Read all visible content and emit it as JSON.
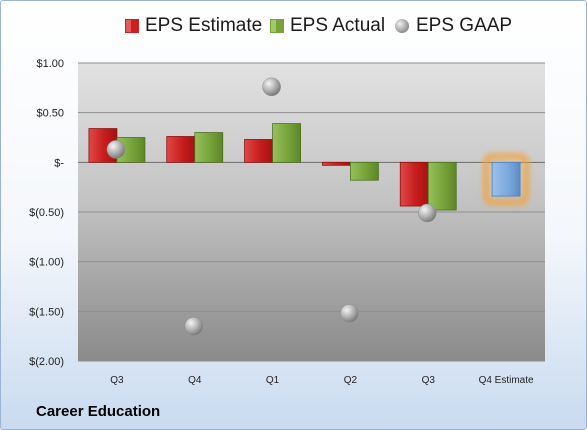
{
  "legend": [
    {
      "name": "EPS Estimate",
      "color": "#cc1f1f",
      "icon": "red-bar-swatch"
    },
    {
      "name": "EPS Actual",
      "color": "#77a33a",
      "icon": "green-bar-swatch"
    },
    {
      "name": "EPS GAAP",
      "color": "#a7a7a7",
      "icon": "gray-sphere-swatch"
    }
  ],
  "company": "Career Education",
  "chart_data": {
    "type": "bar",
    "categories": [
      "Q3",
      "Q4",
      "Q1",
      "Q2",
      "Q3",
      "Q4 Estimate"
    ],
    "series": [
      {
        "name": "EPS Estimate",
        "type": "bar",
        "color": "#cc1f1f",
        "values": [
          0.34,
          0.26,
          0.23,
          -0.03,
          -0.44,
          -0.34
        ]
      },
      {
        "name": "EPS Actual",
        "type": "bar",
        "color": "#77a33a",
        "values": [
          0.25,
          0.3,
          0.39,
          -0.18,
          -0.48,
          null
        ]
      },
      {
        "name": "EPS GAAP",
        "type": "scatter",
        "color": "#a7a7a7",
        "values": [
          0.13,
          -1.65,
          0.76,
          -1.52,
          -0.51,
          null
        ]
      }
    ],
    "highlight": {
      "category": "Q4 Estimate",
      "series": "EPS Estimate",
      "color": "#7aa7dc",
      "glow": "#f3a33b"
    },
    "y_ticks": [
      {
        "value": 1.0,
        "label": "$1.00"
      },
      {
        "value": 0.5,
        "label": "$0.50"
      },
      {
        "value": 0.0,
        "label": "$-"
      },
      {
        "value": -0.5,
        "label": "$(0.50)"
      },
      {
        "value": -1.0,
        "label": "$(1.00)"
      },
      {
        "value": -1.5,
        "label": "$(1.50)"
      },
      {
        "value": -2.0,
        "label": "$(2.00)"
      }
    ],
    "ylim": [
      -2.0,
      1.0
    ],
    "grid": true,
    "legend_position": "top"
  }
}
